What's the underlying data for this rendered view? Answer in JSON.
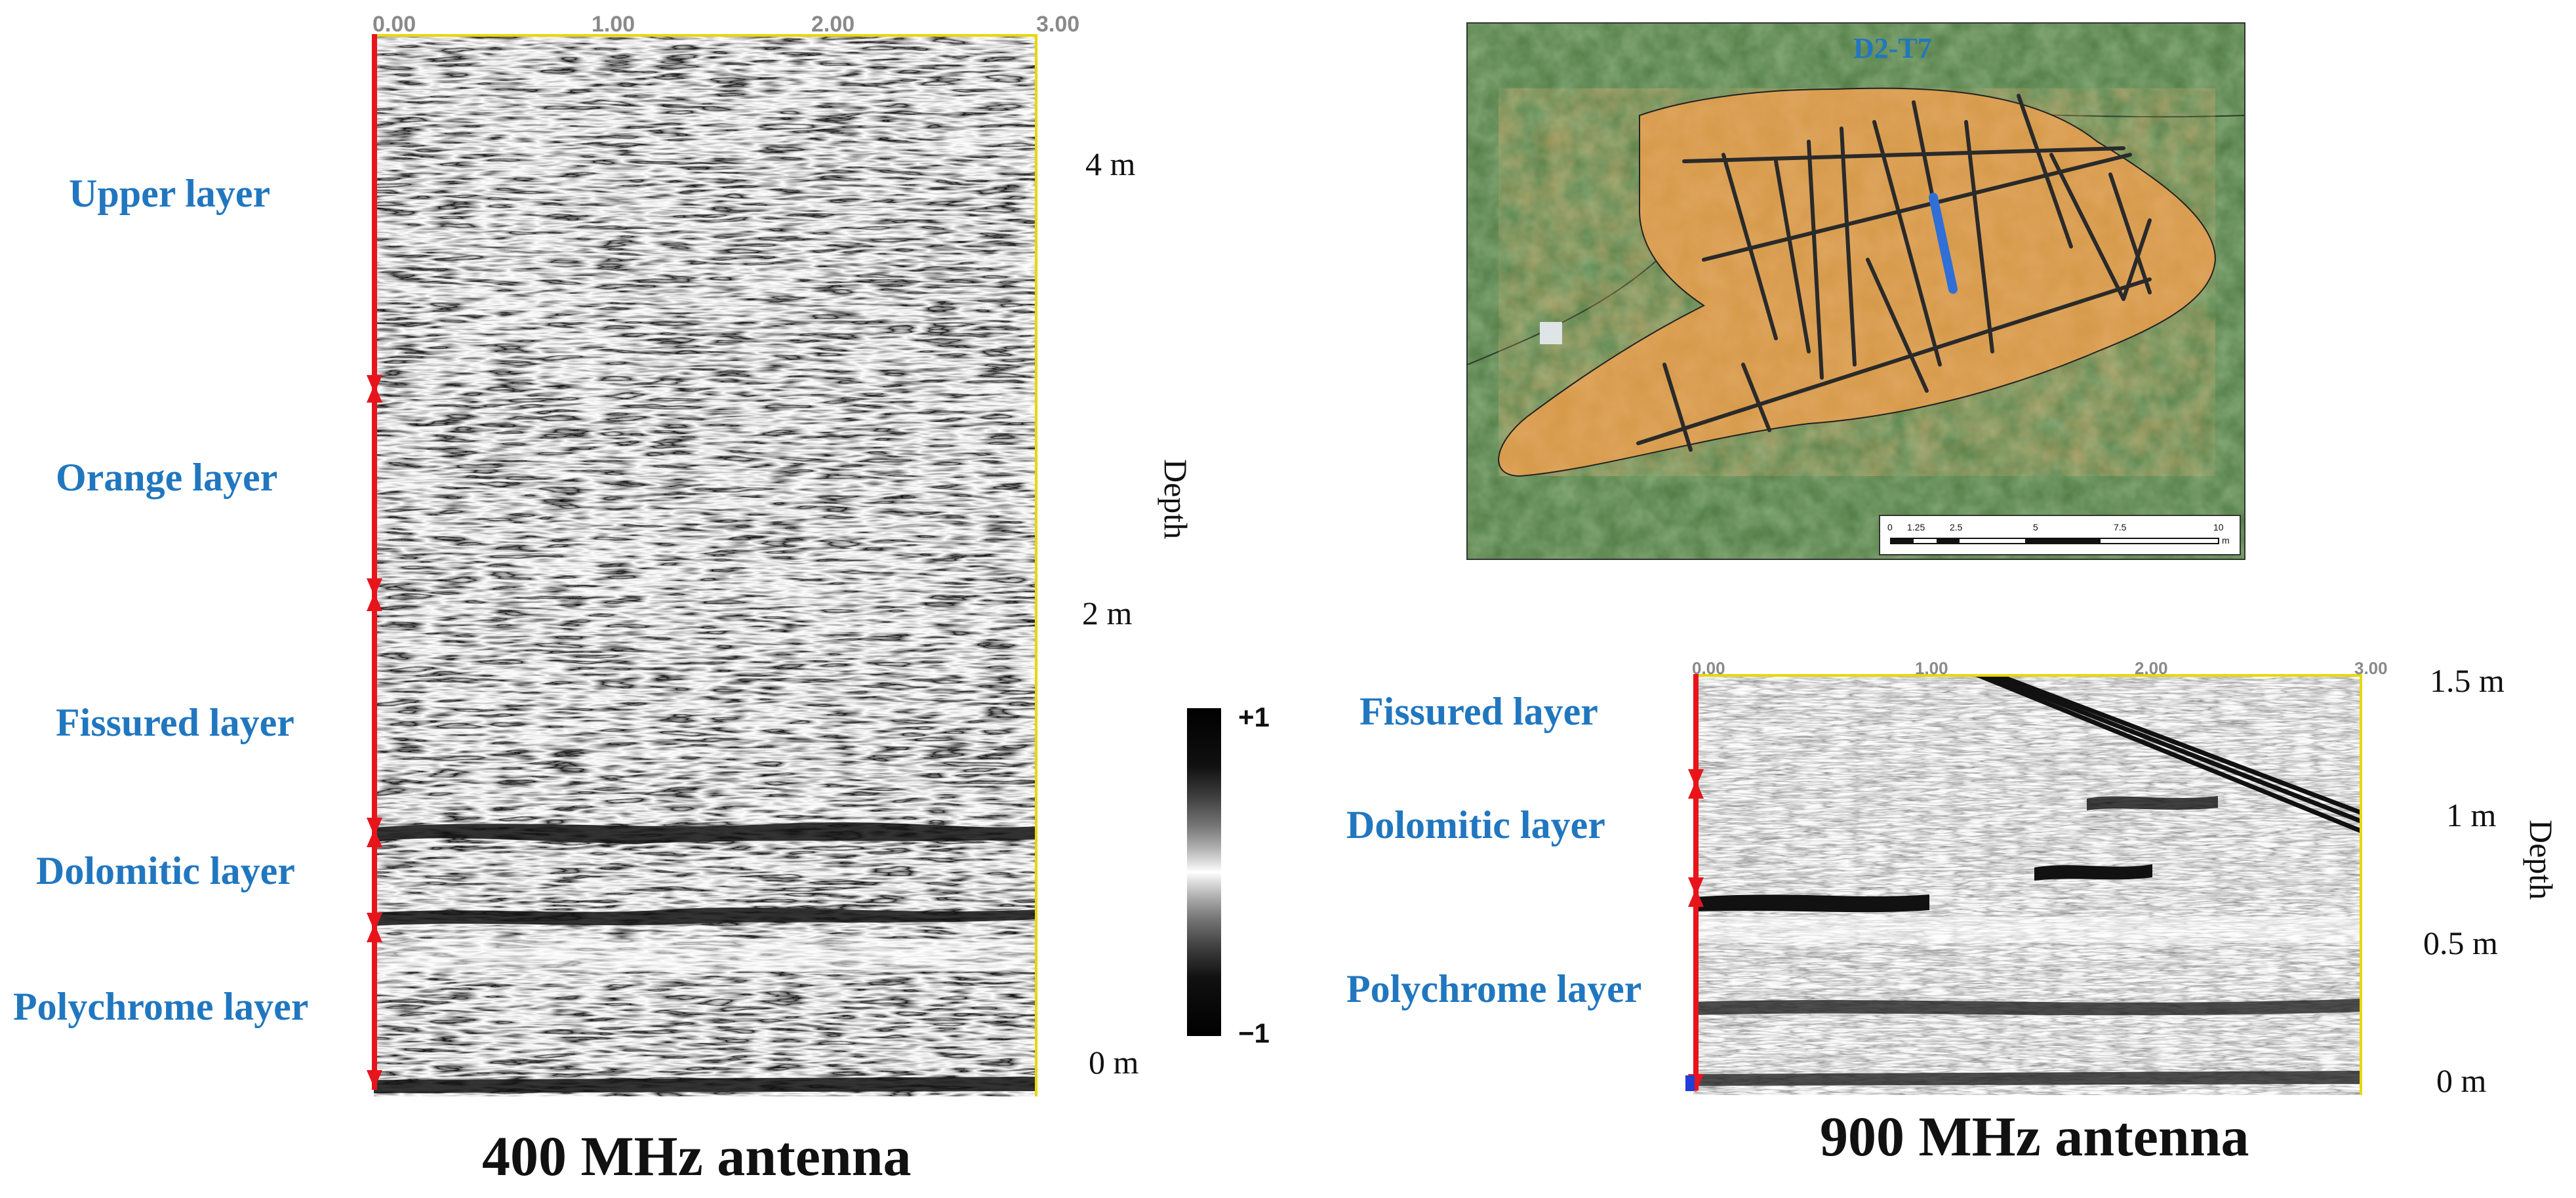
{
  "left_panel": {
    "caption": "400 MHz antenna",
    "x_ticks": [
      "0.00",
      "1.00",
      "2.00",
      "3.00"
    ],
    "depth_ticks": [
      "4 m",
      "2 m",
      "0 m"
    ],
    "depth_title": "Depth",
    "layers": [
      "Upper layer",
      "Orange layer",
      "Fissured layer",
      "Dolomitic layer",
      "Polychrome layer"
    ]
  },
  "colorbar": {
    "max_label": "+1",
    "min_label": "−1"
  },
  "map_panel": {
    "label": "D2-T7",
    "scale_ticks": [
      "0",
      "1.25",
      "2.5",
      "5",
      "7.5",
      "10"
    ],
    "scale_unit": "m"
  },
  "right_panel": {
    "caption": "900 MHz antenna",
    "x_ticks": [
      "0.00",
      "1.00",
      "2.00",
      "3.00"
    ],
    "depth_ticks": [
      "1.5 m",
      "1 m",
      "0.5 m",
      "0 m"
    ],
    "depth_title": "Depth",
    "layers": [
      "Fissured layer",
      "Dolomitic layer",
      "Polychrome layer"
    ]
  },
  "colors": {
    "label_blue": "#2177bf",
    "arrow_red": "#e8141b",
    "axis_yellow": "#e6d800",
    "transect_blue": "#2f6fd6"
  }
}
